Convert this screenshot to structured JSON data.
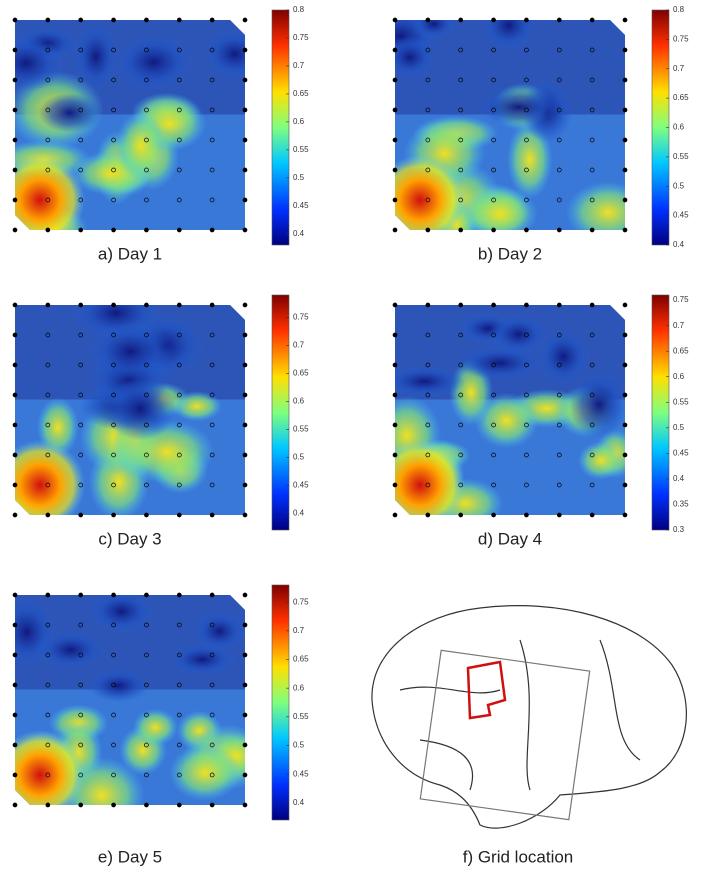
{
  "panels": [
    {
      "caption": "a) Day 1",
      "colorbar": {
        "lim": [
          0.38,
          0.8
        ],
        "ticks": [
          0.8,
          0.75,
          0.7,
          0.65,
          0.6,
          0.55,
          0.5,
          0.45,
          0.4
        ]
      }
    },
    {
      "caption": "b) Day 2",
      "colorbar": {
        "lim": [
          0.4,
          0.8
        ],
        "ticks": [
          0.8,
          0.75,
          0.7,
          0.65,
          0.6,
          0.55,
          0.5,
          0.45,
          0.4
        ]
      }
    },
    {
      "caption": "c) Day 3",
      "colorbar": {
        "lim": [
          0.37,
          0.79
        ],
        "ticks": [
          0.75,
          0.7,
          0.65,
          0.6,
          0.55,
          0.5,
          0.45,
          0.4
        ]
      }
    },
    {
      "caption": "d) Day 4",
      "colorbar": {
        "lim": [
          0.3,
          0.76
        ],
        "ticks": [
          0.75,
          0.7,
          0.65,
          0.6,
          0.55,
          0.5,
          0.45,
          0.4,
          0.35,
          0.3
        ]
      }
    },
    {
      "caption": "e) Day 5",
      "colorbar": {
        "lim": [
          0.37,
          0.78
        ],
        "ticks": [
          0.75,
          0.7,
          0.65,
          0.6,
          0.55,
          0.5,
          0.45,
          0.4
        ]
      }
    }
  ],
  "brain": {
    "caption": "f) Grid location"
  }
}
